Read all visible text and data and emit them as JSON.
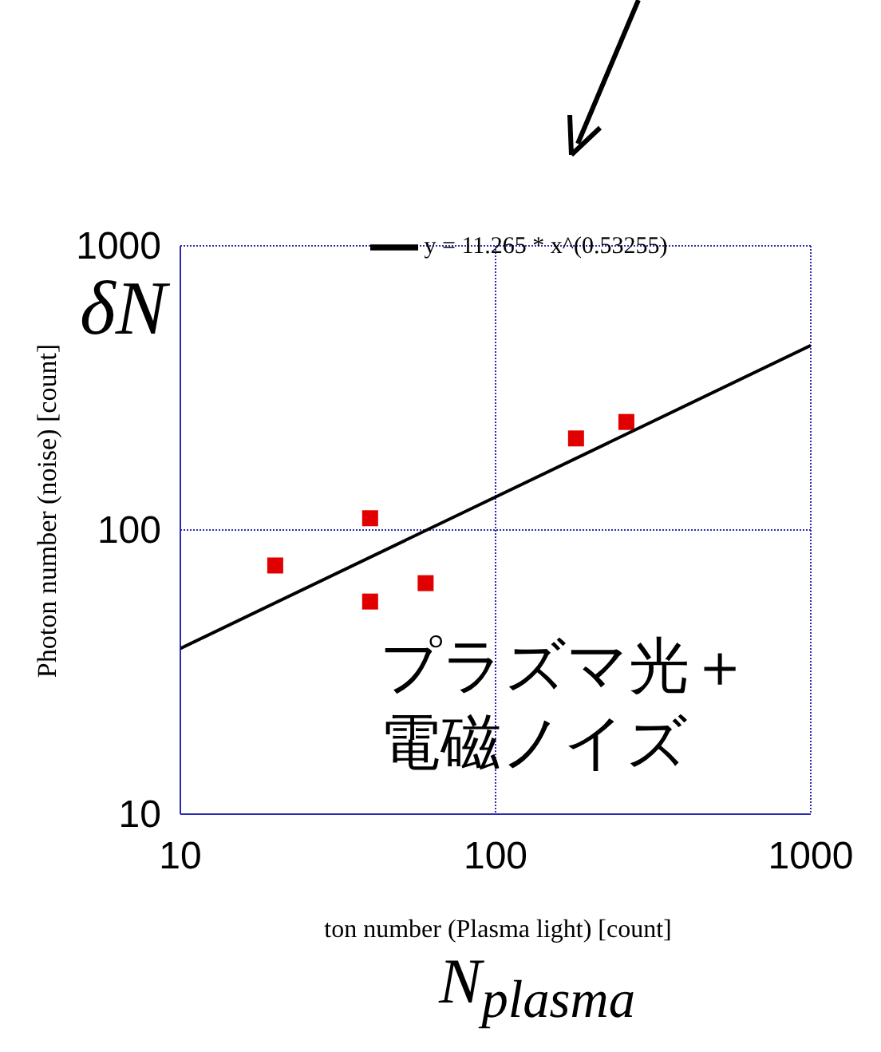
{
  "chart_data": {
    "type": "scatter",
    "xlabel": "ton number (Plasma light) [count]",
    "ylabel": "Photon number (noise) [count]",
    "annotations": [
      "δN",
      "N$_{plasma}$",
      "プラズマ光＋",
      "電磁ノイズ"
    ],
    "x": [
      20,
      40,
      40,
      60,
      180,
      260
    ],
    "series": [
      {
        "color": "#e00000",
        "values": [
          75,
          110,
          56,
          65,
          210,
          240
        ],
        "marker": "square"
      },
      {
        "type": "line",
        "name": "y = 11.265 * x^(0.53255)",
        "color": "#000000",
        "x": [
          10,
          1000
        ],
        "values": [
          38.3,
          446
        ],
        "marker": "none",
        "line_style": "solid"
      }
    ],
    "log": "xy",
    "xlim": [
      10,
      1000
    ],
    "ylim": [
      10,
      1000
    ],
    "xticks": [
      10,
      100,
      1000
    ],
    "yticks": [
      10,
      100,
      1000
    ],
    "grid": true,
    "legend": "top"
  }
}
